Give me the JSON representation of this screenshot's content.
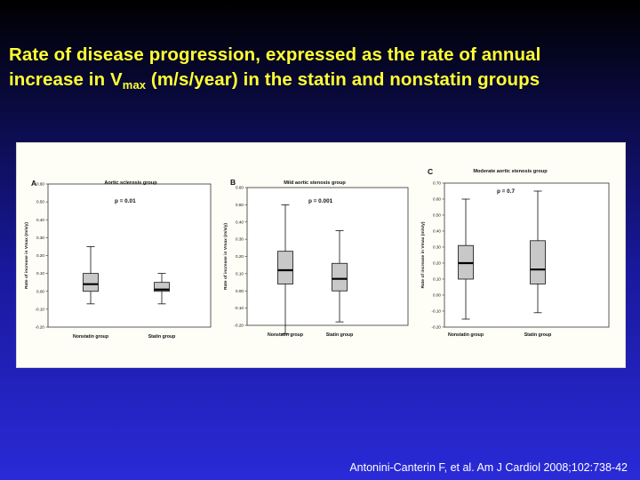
{
  "slide": {
    "title_line1": "Rate of disease progression, expressed as the rate of annual",
    "title_line2_pre": "increase in V",
    "title_line2_sub": "max",
    "title_line2_post": " (m/s/year) in the statin and nonstatin groups",
    "citation": "Antonini-Canterin F, et al. Am J Cardiol 2008;102:738-42",
    "title_color": "#ffff33"
  },
  "chart_data": [
    {
      "type": "box",
      "panel_letter": "A",
      "title": "Aortic sclerosis group",
      "ylabel": "Rate of increase in Vmax (m/s/y)",
      "ylim": [
        -0.2,
        0.6
      ],
      "yticks": [
        "0.60",
        "0.50",
        "0.40",
        "0.30",
        "0.20",
        "0.10",
        "0.00",
        "-0.10",
        "-0.20"
      ],
      "annotation": "p = 0.01",
      "categories": [
        "Nonstatin group",
        "Statin group"
      ],
      "boxes": [
        {
          "whisker_low": -0.07,
          "q1": 0.0,
          "median": 0.04,
          "q3": 0.1,
          "whisker_high": 0.25
        },
        {
          "whisker_low": -0.07,
          "q1": 0.0,
          "median": 0.01,
          "q3": 0.05,
          "whisker_high": 0.1
        }
      ],
      "grid": false
    },
    {
      "type": "box",
      "panel_letter": "B",
      "title": "Mild aortic stenosis group",
      "ylabel": "Rate of increase in Vmax (m/s/y)",
      "ylim": [
        -0.2,
        0.6
      ],
      "yticks": [
        "0.60",
        "0.50",
        "0.40",
        "0.30",
        "0.20",
        "0.10",
        "0.00",
        "-0.10",
        "-0.20"
      ],
      "annotation": "p = 0.001",
      "categories": [
        "Nonstatin group",
        "Statin group"
      ],
      "boxes": [
        {
          "whisker_low": -0.25,
          "q1": 0.04,
          "median": 0.12,
          "q3": 0.23,
          "whisker_high": 0.5
        },
        {
          "whisker_low": -0.18,
          "q1": 0.0,
          "median": 0.07,
          "q3": 0.16,
          "whisker_high": 0.35
        }
      ],
      "grid": false
    },
    {
      "type": "box",
      "panel_letter": "C",
      "title": "Moderate aortic stenosis group",
      "ylabel": "Rate of increase in Vmax (m/s/y)",
      "ylim": [
        -0.2,
        0.7
      ],
      "yticks": [
        "0.70",
        "0.60",
        "0.50",
        "0.40",
        "0.30",
        "0.20",
        "0.10",
        "0.00",
        "-0.10",
        "-0.20"
      ],
      "annotation": "p = 0.7",
      "categories": [
        "Nonstatin group",
        "Statin group"
      ],
      "boxes": [
        {
          "whisker_low": -0.15,
          "q1": 0.1,
          "median": 0.2,
          "q3": 0.31,
          "whisker_high": 0.6
        },
        {
          "whisker_low": -0.11,
          "q1": 0.07,
          "median": 0.16,
          "q3": 0.34,
          "whisker_high": 0.65
        }
      ],
      "grid": false
    }
  ]
}
